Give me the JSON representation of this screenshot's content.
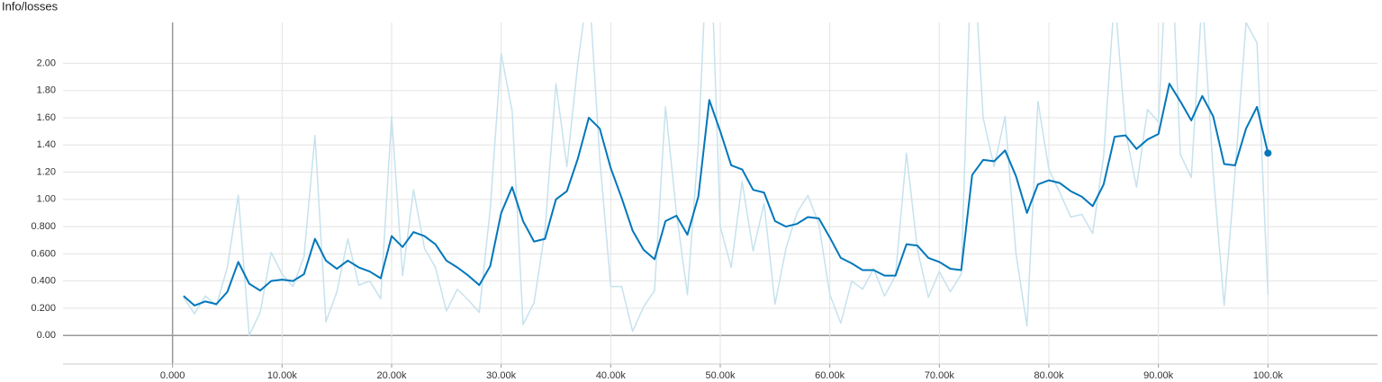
{
  "chart_data": {
    "type": "line",
    "title": "Info/losses",
    "x": [
      1000,
      2000,
      3000,
      4000,
      5000,
      6000,
      7000,
      8000,
      9000,
      10000,
      11000,
      12000,
      13000,
      14000,
      15000,
      16000,
      17000,
      18000,
      19000,
      20000,
      21000,
      22000,
      23000,
      24000,
      25000,
      26000,
      27000,
      28000,
      29000,
      30000,
      31000,
      32000,
      33000,
      34000,
      35000,
      36000,
      37000,
      38000,
      39000,
      40000,
      41000,
      42000,
      43000,
      44000,
      45000,
      46000,
      47000,
      48000,
      49000,
      50000,
      51000,
      52000,
      53000,
      54000,
      55000,
      56000,
      57000,
      58000,
      59000,
      60000,
      61000,
      62000,
      63000,
      64000,
      65000,
      66000,
      67000,
      68000,
      69000,
      70000,
      71000,
      72000,
      73000,
      74000,
      75000,
      76000,
      77000,
      78000,
      79000,
      80000,
      81000,
      82000,
      83000,
      84000,
      85000,
      86000,
      87000,
      88000,
      89000,
      90000,
      91000,
      92000,
      93000,
      94000,
      95000,
      96000,
      97000,
      98000,
      99000,
      100000
    ],
    "series": [
      {
        "color": "#c6e2ee",
        "values": [
          0.28,
          0.16,
          0.29,
          0.22,
          0.5,
          1.03,
          0.0,
          0.17,
          0.61,
          0.45,
          0.36,
          0.58,
          1.47,
          0.1,
          0.32,
          0.71,
          0.37,
          0.4,
          0.27,
          1.61,
          0.44,
          1.07,
          0.64,
          0.5,
          0.18,
          0.34,
          0.26,
          0.17,
          0.93,
          2.07,
          1.65,
          0.08,
          0.24,
          0.77,
          1.85,
          1.24,
          2.0,
          2.6,
          1.3,
          0.36,
          0.36,
          0.03,
          0.21,
          0.33,
          1.68,
          0.9,
          0.3,
          1.4,
          3.2,
          0.8,
          0.5,
          1.13,
          0.62,
          0.97,
          0.23,
          0.64,
          0.9,
          1.03,
          0.82,
          0.3,
          0.09,
          0.4,
          0.34,
          0.49,
          0.29,
          0.44,
          1.34,
          0.63,
          0.28,
          0.47,
          0.32,
          0.45,
          3.0,
          1.6,
          1.24,
          1.61,
          0.6,
          0.07,
          1.72,
          1.22,
          1.05,
          0.87,
          0.89,
          0.75,
          1.32,
          2.5,
          1.5,
          1.09,
          1.66,
          1.57,
          3.2,
          1.33,
          1.16,
          2.5,
          1.2,
          0.22,
          1.2,
          2.3,
          2.15,
          0.3
        ]
      },
      {
        "color": "#0077bb",
        "values": [
          0.29,
          0.22,
          0.25,
          0.23,
          0.32,
          0.54,
          0.38,
          0.33,
          0.4,
          0.41,
          0.4,
          0.45,
          0.71,
          0.55,
          0.49,
          0.55,
          0.5,
          0.47,
          0.42,
          0.73,
          0.65,
          0.76,
          0.73,
          0.67,
          0.55,
          0.5,
          0.44,
          0.37,
          0.51,
          0.9,
          1.09,
          0.84,
          0.69,
          0.71,
          1.0,
          1.06,
          1.3,
          1.6,
          1.52,
          1.23,
          1.01,
          0.77,
          0.63,
          0.56,
          0.84,
          0.88,
          0.74,
          1.02,
          1.73,
          1.5,
          1.25,
          1.22,
          1.07,
          1.05,
          0.84,
          0.8,
          0.82,
          0.87,
          0.86,
          0.72,
          0.57,
          0.53,
          0.48,
          0.48,
          0.44,
          0.44,
          0.67,
          0.66,
          0.57,
          0.54,
          0.49,
          0.48,
          1.18,
          1.29,
          1.28,
          1.36,
          1.17,
          0.9,
          1.11,
          1.14,
          1.12,
          1.06,
          1.02,
          0.95,
          1.11,
          1.46,
          1.47,
          1.37,
          1.44,
          1.48,
          1.85,
          1.72,
          1.58,
          1.76,
          1.61,
          1.26,
          1.25,
          1.52,
          1.68,
          1.34
        ]
      }
    ],
    "xlim": [
      -10000,
      110000
    ],
    "xticks": [
      {
        "value": 0,
        "label": "0.000"
      },
      {
        "value": 10000,
        "label": "10.00k"
      },
      {
        "value": 20000,
        "label": "20.00k"
      },
      {
        "value": 30000,
        "label": "30.00k"
      },
      {
        "value": 40000,
        "label": "40.00k"
      },
      {
        "value": 50000,
        "label": "50.00k"
      },
      {
        "value": 60000,
        "label": "60.00k"
      },
      {
        "value": 70000,
        "label": "70.00k"
      },
      {
        "value": 80000,
        "label": "80.00k"
      },
      {
        "value": 90000,
        "label": "90.00k"
      },
      {
        "value": 100000,
        "label": "100.0k"
      }
    ],
    "ylim": [
      -0.21,
      2.3
    ],
    "yticks": [
      {
        "value": 0,
        "label": "0.00"
      },
      {
        "value": 0.2,
        "label": "0.200"
      },
      {
        "value": 0.4,
        "label": "0.400"
      },
      {
        "value": 0.6,
        "label": "0.600"
      },
      {
        "value": 0.8,
        "label": "0.800"
      },
      {
        "value": 1,
        "label": "1.00"
      },
      {
        "value": 1.2,
        "label": "1.20"
      },
      {
        "value": 1.4,
        "label": "1.40"
      },
      {
        "value": 1.6,
        "label": "1.60"
      },
      {
        "value": 1.8,
        "label": "1.80"
      },
      {
        "value": 2,
        "label": "2.00"
      }
    ],
    "grid": true
  }
}
